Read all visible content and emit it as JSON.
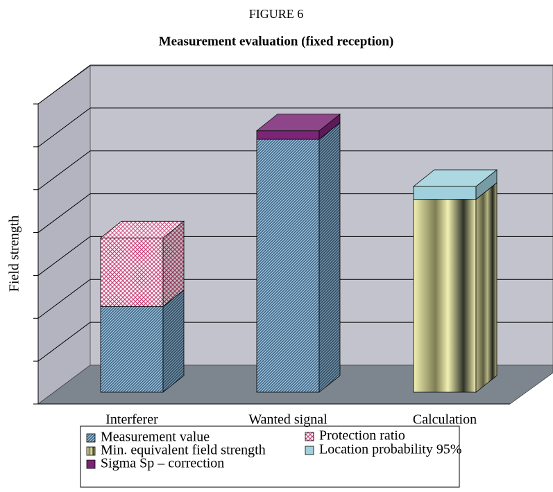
{
  "chart_data": {
    "type": "bar3d_stacked",
    "title": "FIGURE 6",
    "subtitle": "Measurement evaluation (fixed reception)",
    "y_label": "Field strength",
    "categories": [
      "Interferer",
      "Wanted signal",
      "Calculation"
    ],
    "series": [
      {
        "name": "Measurement value",
        "color": "#3d6688",
        "values": [
          2.0,
          5.9,
          null
        ]
      },
      {
        "name": "Protection ratio",
        "color": "#c8467a",
        "values": [
          1.6,
          null,
          null
        ]
      },
      {
        "name": "Min. equivalent field strength",
        "color": "#f2f0b0",
        "values": [
          null,
          null,
          4.5
        ]
      },
      {
        "name": "Location probability 95%",
        "color": "#9fd0dc",
        "values": [
          null,
          null,
          0.3
        ]
      },
      {
        "name": "Sigma Sp – correction",
        "color": "#7b2576",
        "values": [
          null,
          0.2,
          null
        ]
      }
    ],
    "ylim": [
      0,
      7
    ],
    "yticks": [
      0,
      1,
      2,
      3,
      4,
      5,
      6,
      7
    ],
    "grid": true
  }
}
